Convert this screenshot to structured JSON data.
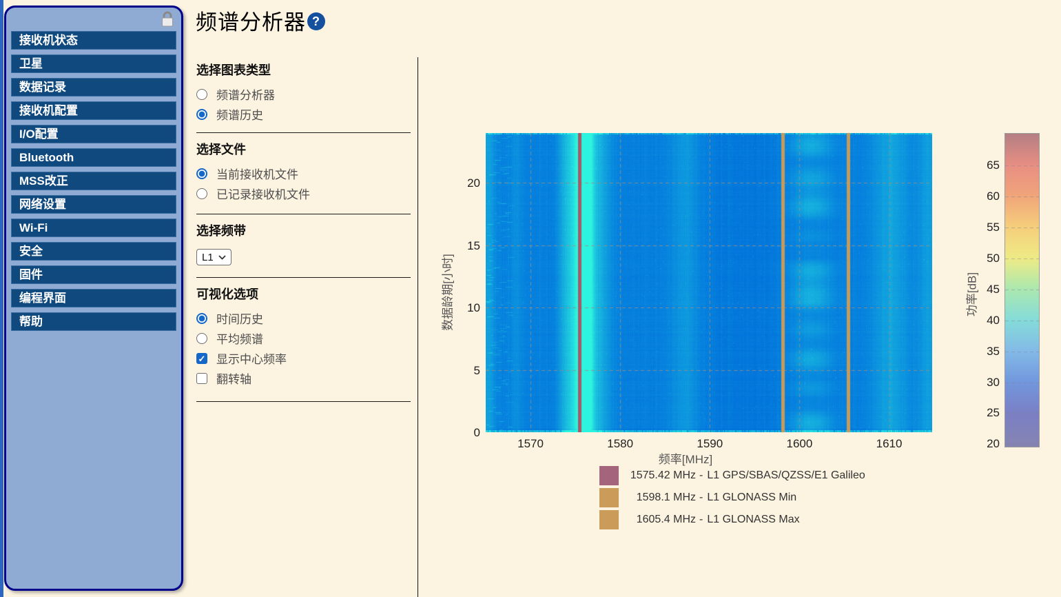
{
  "page": {
    "title": "频谱分析器",
    "help_label": "?"
  },
  "sidebar": {
    "items": [
      {
        "key": "receiver-status",
        "label": "接收机状态"
      },
      {
        "key": "satellites",
        "label": "卫星"
      },
      {
        "key": "data-logging",
        "label": "数据记录"
      },
      {
        "key": "receiver-configuration",
        "label": "接收机配置"
      },
      {
        "key": "io-configuration",
        "label": "I/O配置"
      },
      {
        "key": "bluetooth",
        "label": "Bluetooth"
      },
      {
        "key": "mss-corrections",
        "label": "MSS改正"
      },
      {
        "key": "network-settings",
        "label": "网络设置"
      },
      {
        "key": "wifi",
        "label": "Wi-Fi"
      },
      {
        "key": "security",
        "label": "安全"
      },
      {
        "key": "firmware",
        "label": "固件"
      },
      {
        "key": "programming-interface",
        "label": "编程界面"
      },
      {
        "key": "help",
        "label": "帮助"
      }
    ]
  },
  "panel": {
    "sections": [
      {
        "title": "选择图表类型",
        "options": [
          {
            "key": "spectrum-analyzer",
            "type": "radio",
            "label": "频谱分析器",
            "checked": false
          },
          {
            "key": "spectrum-history",
            "type": "radio",
            "label": "频谱历史",
            "checked": true
          }
        ]
      },
      {
        "title": "选择文件",
        "options": [
          {
            "key": "current-receiver-file",
            "type": "radio",
            "label": "当前接收机文件",
            "checked": true
          },
          {
            "key": "logged-receiver-file",
            "type": "radio",
            "label": "已记录接收机文件",
            "checked": false
          }
        ]
      },
      {
        "title": "选择频带",
        "select": {
          "key": "band-select",
          "value": "L1"
        }
      },
      {
        "title": "可视化选项",
        "options": [
          {
            "key": "time-history",
            "type": "radio",
            "label": "时间历史",
            "checked": true
          },
          {
            "key": "average-spectrum",
            "type": "radio",
            "label": "平均频谱",
            "checked": false
          },
          {
            "key": "show-center-frequency",
            "type": "checkbox",
            "label": "显示中心频率",
            "checked": true
          },
          {
            "key": "flip-axes",
            "type": "checkbox",
            "label": "翻转轴",
            "checked": false
          }
        ]
      }
    ]
  },
  "chart_data": {
    "type": "heatmap",
    "xlabel": "频率[MHz]",
    "ylabel": "数据龄期[小时]",
    "colorbar_label": "功率[dB]",
    "x_range": [
      1565.0,
      1614.8
    ],
    "y_range": [
      0,
      24
    ],
    "x_ticks": [
      1570,
      1580,
      1590,
      1600,
      1610
    ],
    "y_ticks": [
      0,
      5,
      10,
      15,
      20
    ],
    "colorbar_range": [
      19.6,
      70.1
    ],
    "colorbar_ticks": [
      20,
      25,
      30,
      35,
      40,
      45,
      50,
      55,
      60,
      65
    ],
    "colorbar_stops": [
      {
        "db": 70.1,
        "color": "#b57f84"
      },
      {
        "db": 65,
        "color": "#e88f83"
      },
      {
        "db": 60,
        "color": "#f1a67a"
      },
      {
        "db": 55,
        "color": "#f6cf7c"
      },
      {
        "db": 50,
        "color": "#eeeb86"
      },
      {
        "db": 45,
        "color": "#abe8b0"
      },
      {
        "db": 40,
        "color": "#85dcda"
      },
      {
        "db": 35,
        "color": "#83bae7"
      },
      {
        "db": 30,
        "color": "#7297dd"
      },
      {
        "db": 25,
        "color": "#7b80c5"
      },
      {
        "db": 19.6,
        "color": "#8684b2"
      }
    ],
    "base_power_db": 33,
    "bands": [
      {
        "center_mhz": 1575.45,
        "sigma_mhz": 0.85,
        "peak_db": 44.5
      },
      {
        "center_mhz": 1576.3,
        "sigma_mhz": 0.5,
        "peak_db": 42.0
      },
      {
        "center_mhz": 1573.8,
        "sigma_mhz": 0.55,
        "peak_db": 36.5
      },
      {
        "center_mhz": 1577.6,
        "sigma_mhz": 0.9,
        "peak_db": 37.5
      },
      {
        "center_mhz": 1565.2,
        "sigma_mhz": 0.6,
        "peak_db": 36.5
      },
      {
        "center_mhz": 1568.4,
        "sigma_mhz": 0.5,
        "peak_db": 34.5
      },
      {
        "center_mhz": 1587.3,
        "sigma_mhz": 1.1,
        "peak_db": 35.5
      },
      {
        "center_mhz": 1601.3,
        "sigma_mhz": 1.6,
        "peak_db": 36.0,
        "patchy": true
      },
      {
        "center_mhz": 1610.2,
        "sigma_mhz": 1.4,
        "peak_db": 36.5
      },
      {
        "center_mhz": 1614.4,
        "sigma_mhz": 0.8,
        "peak_db": 36.0
      },
      {
        "center_mhz": 1594.0,
        "sigma_mhz": 3.5,
        "peak_db": 32.2
      }
    ],
    "markers": [
      {
        "freq_mhz": 1575.42,
        "line_color": "#a65a68",
        "swatch_color": "#a4647c",
        "value": "1575.42 MHz",
        "sep": "-",
        "name": "L1 GPS/SBAS/QZSS/E1 Galileo"
      },
      {
        "freq_mhz": 1598.1,
        "line_color": "#c69a5b",
        "swatch_color": "#ca9b59",
        "value": "1598.1 MHz",
        "sep": "-",
        "name": "L1 GLONASS Min"
      },
      {
        "freq_mhz": 1605.4,
        "line_color": "#c69a5b",
        "swatch_color": "#ca9b59",
        "value": "1605.4 MHz",
        "sep": "-",
        "name": "L1 GLONASS Max"
      }
    ]
  }
}
